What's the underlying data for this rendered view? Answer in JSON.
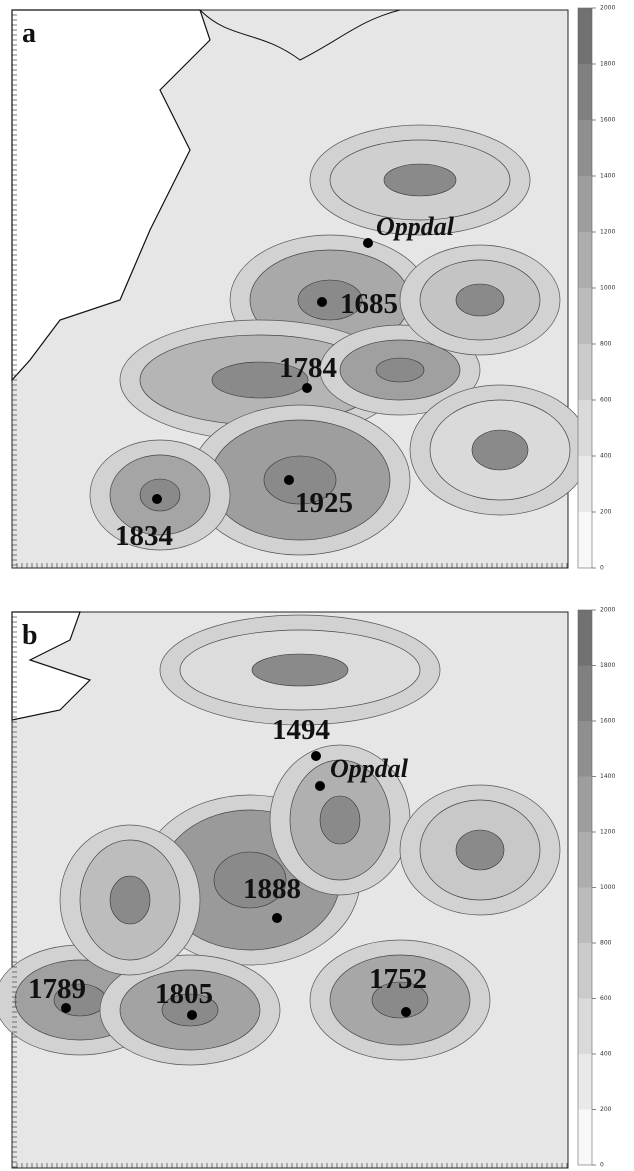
{
  "panels": [
    {
      "label": "a",
      "sites": [
        "Oppdal",
        1685,
        1784,
        1925,
        1834
      ],
      "colorbar": {
        "ticks": [
          2000,
          1800,
          1600,
          1400,
          1200,
          1000,
          800,
          600,
          400,
          200,
          0
        ]
      }
    },
    {
      "label": "b",
      "sites": [
        1494,
        "Oppdal",
        1888,
        1789,
        1805,
        1752
      ],
      "colorbar": {
        "ticks": [
          2000,
          1800,
          1600,
          1400,
          1200,
          1000,
          800,
          600,
          400,
          200,
          0
        ]
      }
    }
  ]
}
